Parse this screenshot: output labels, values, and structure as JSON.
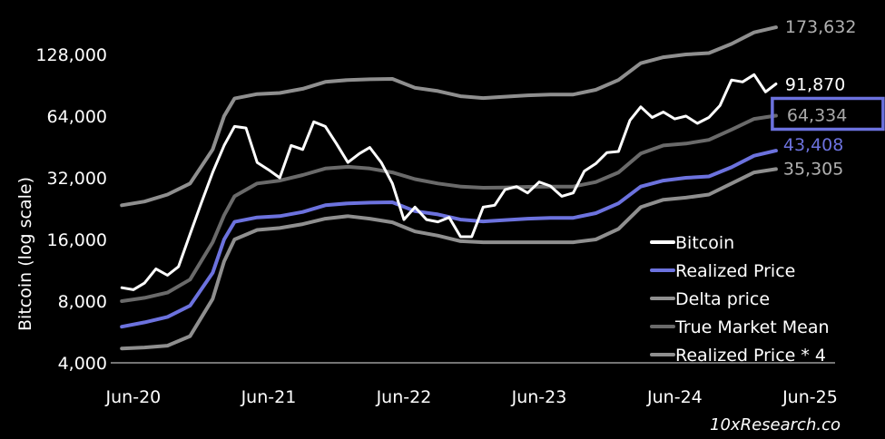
{
  "chart_data": {
    "type": "line",
    "ylabel": "Bitcoin (log scale)",
    "y_scale": "log2",
    "ylim": [
      4000,
      180000
    ],
    "xlim": [
      "2020-04-01",
      "2025-09-01"
    ],
    "yticks": [
      {
        "value": 4000,
        "label": "4,000"
      },
      {
        "value": 8000,
        "label": "8,000"
      },
      {
        "value": 16000,
        "label": "16,000"
      },
      {
        "value": 32000,
        "label": "32,000"
      },
      {
        "value": 64000,
        "label": "64,000"
      },
      {
        "value": 128000,
        "label": "128,000"
      }
    ],
    "xticks": [
      {
        "value": "2020-06-01",
        "label": "Jun-20"
      },
      {
        "value": "2021-06-01",
        "label": "Jun-21"
      },
      {
        "value": "2022-06-01",
        "label": "Jun-22"
      },
      {
        "value": "2023-06-01",
        "label": "Jun-23"
      },
      {
        "value": "2024-06-01",
        "label": "Jun-24"
      },
      {
        "value": "2025-06-01",
        "label": "Jun-25"
      }
    ],
    "grid": false,
    "legend_position": "bottom-right",
    "series": [
      {
        "name": "Bitcoin",
        "color": "#ffffff",
        "end_label": "91,870",
        "end_label_color": "#ffffff",
        "points": [
          [
            "2020-05-01",
            9300
          ],
          [
            "2020-06-01",
            9100
          ],
          [
            "2020-07-01",
            9800
          ],
          [
            "2020-08-01",
            11500
          ],
          [
            "2020-09-01",
            10700
          ],
          [
            "2020-10-01",
            11800
          ],
          [
            "2020-11-01",
            17000
          ],
          [
            "2020-12-01",
            24000
          ],
          [
            "2021-01-01",
            34000
          ],
          [
            "2021-02-01",
            46000
          ],
          [
            "2021-03-01",
            57000
          ],
          [
            "2021-04-01",
            56000
          ],
          [
            "2021-05-01",
            38000
          ],
          [
            "2021-06-01",
            35000
          ],
          [
            "2021-07-01",
            32000
          ],
          [
            "2021-08-01",
            46000
          ],
          [
            "2021-09-01",
            44000
          ],
          [
            "2021-10-01",
            60000
          ],
          [
            "2021-11-01",
            57000
          ],
          [
            "2021-12-01",
            47000
          ],
          [
            "2022-01-01",
            38000
          ],
          [
            "2022-02-01",
            42000
          ],
          [
            "2022-03-01",
            45000
          ],
          [
            "2022-04-01",
            38000
          ],
          [
            "2022-05-01",
            30000
          ],
          [
            "2022-06-01",
            20000
          ],
          [
            "2022-07-01",
            23000
          ],
          [
            "2022-08-01",
            20000
          ],
          [
            "2022-09-01",
            19500
          ],
          [
            "2022-10-01",
            20500
          ],
          [
            "2022-11-01",
            16500
          ],
          [
            "2022-12-01",
            16500
          ],
          [
            "2023-01-01",
            23000
          ],
          [
            "2023-02-01",
            23500
          ],
          [
            "2023-03-01",
            28000
          ],
          [
            "2023-04-01",
            29000
          ],
          [
            "2023-05-01",
            27000
          ],
          [
            "2023-06-01",
            30500
          ],
          [
            "2023-07-01",
            29200
          ],
          [
            "2023-08-01",
            26000
          ],
          [
            "2023-09-01",
            27000
          ],
          [
            "2023-10-01",
            34500
          ],
          [
            "2023-11-01",
            37500
          ],
          [
            "2023-12-01",
            42500
          ],
          [
            "2024-01-01",
            43000
          ],
          [
            "2024-02-01",
            61000
          ],
          [
            "2024-03-01",
            71000
          ],
          [
            "2024-04-01",
            63000
          ],
          [
            "2024-05-01",
            67000
          ],
          [
            "2024-06-01",
            62000
          ],
          [
            "2024-07-01",
            64000
          ],
          [
            "2024-08-01",
            59000
          ],
          [
            "2024-09-01",
            63000
          ],
          [
            "2024-10-01",
            72000
          ],
          [
            "2024-11-01",
            96000
          ],
          [
            "2024-12-01",
            94000
          ],
          [
            "2025-01-01",
            102000
          ],
          [
            "2025-02-01",
            84000
          ],
          [
            "2025-03-01",
            91870
          ]
        ]
      },
      {
        "name": "Realized Price",
        "color": "#6c72de",
        "end_label": "43,408",
        "end_label_color": "#6c72de",
        "points": [
          [
            "2020-05-01",
            6000
          ],
          [
            "2020-07-01",
            6300
          ],
          [
            "2020-09-01",
            6700
          ],
          [
            "2020-11-01",
            7600
          ],
          [
            "2021-01-01",
            11000
          ],
          [
            "2021-02-01",
            16000
          ],
          [
            "2021-03-01",
            19500
          ],
          [
            "2021-05-01",
            20500
          ],
          [
            "2021-07-01",
            20800
          ],
          [
            "2021-09-01",
            21800
          ],
          [
            "2021-11-01",
            23500
          ],
          [
            "2022-01-01",
            24000
          ],
          [
            "2022-03-01",
            24200
          ],
          [
            "2022-05-01",
            24300
          ],
          [
            "2022-07-01",
            22000
          ],
          [
            "2022-09-01",
            21200
          ],
          [
            "2022-11-01",
            20000
          ],
          [
            "2023-01-01",
            19600
          ],
          [
            "2023-03-01",
            19900
          ],
          [
            "2023-05-01",
            20200
          ],
          [
            "2023-07-01",
            20400
          ],
          [
            "2023-09-01",
            20400
          ],
          [
            "2023-11-01",
            21500
          ],
          [
            "2024-01-01",
            24000
          ],
          [
            "2024-03-01",
            29000
          ],
          [
            "2024-05-01",
            31000
          ],
          [
            "2024-07-01",
            32000
          ],
          [
            "2024-09-01",
            32500
          ],
          [
            "2024-11-01",
            36000
          ],
          [
            "2025-01-01",
            41000
          ],
          [
            "2025-03-01",
            43408
          ]
        ]
      },
      {
        "name": "Delta price",
        "color": "#8f8f8f",
        "end_label": "35,305",
        "end_label_color": "#b0b0b0",
        "points": [
          [
            "2020-05-01",
            4700
          ],
          [
            "2020-07-01",
            4750
          ],
          [
            "2020-09-01",
            4850
          ],
          [
            "2020-11-01",
            5400
          ],
          [
            "2021-01-01",
            8200
          ],
          [
            "2021-02-01",
            12500
          ],
          [
            "2021-03-01",
            16000
          ],
          [
            "2021-05-01",
            17800
          ],
          [
            "2021-07-01",
            18200
          ],
          [
            "2021-09-01",
            19000
          ],
          [
            "2021-11-01",
            20200
          ],
          [
            "2022-01-01",
            20800
          ],
          [
            "2022-03-01",
            20200
          ],
          [
            "2022-05-01",
            19400
          ],
          [
            "2022-07-01",
            17500
          ],
          [
            "2022-09-01",
            16700
          ],
          [
            "2022-11-01",
            15700
          ],
          [
            "2023-01-01",
            15500
          ],
          [
            "2023-03-01",
            15500
          ],
          [
            "2023-05-01",
            15500
          ],
          [
            "2023-07-01",
            15500
          ],
          [
            "2023-09-01",
            15500
          ],
          [
            "2023-11-01",
            16000
          ],
          [
            "2024-01-01",
            18000
          ],
          [
            "2024-03-01",
            23000
          ],
          [
            "2024-05-01",
            25000
          ],
          [
            "2024-07-01",
            25600
          ],
          [
            "2024-09-01",
            26500
          ],
          [
            "2024-11-01",
            30000
          ],
          [
            "2025-01-01",
            34000
          ],
          [
            "2025-03-01",
            35305
          ]
        ]
      },
      {
        "name": "True Market Mean",
        "color": "#6a6a6a",
        "end_label": "64,334",
        "end_label_color": "#a8a8a8",
        "points": [
          [
            "2020-05-01",
            8000
          ],
          [
            "2020-07-01",
            8300
          ],
          [
            "2020-09-01",
            8800
          ],
          [
            "2020-11-01",
            10200
          ],
          [
            "2021-01-01",
            15500
          ],
          [
            "2021-02-01",
            21000
          ],
          [
            "2021-03-01",
            26000
          ],
          [
            "2021-05-01",
            30000
          ],
          [
            "2021-07-01",
            31000
          ],
          [
            "2021-09-01",
            33000
          ],
          [
            "2021-11-01",
            35500
          ],
          [
            "2022-01-01",
            36200
          ],
          [
            "2022-03-01",
            35500
          ],
          [
            "2022-05-01",
            34000
          ],
          [
            "2022-07-01",
            31500
          ],
          [
            "2022-09-01",
            30000
          ],
          [
            "2022-11-01",
            29000
          ],
          [
            "2023-01-01",
            28600
          ],
          [
            "2023-03-01",
            28700
          ],
          [
            "2023-05-01",
            28900
          ],
          [
            "2023-07-01",
            29000
          ],
          [
            "2023-09-01",
            29000
          ],
          [
            "2023-11-01",
            30500
          ],
          [
            "2024-01-01",
            34000
          ],
          [
            "2024-03-01",
            42000
          ],
          [
            "2024-05-01",
            46000
          ],
          [
            "2024-07-01",
            47000
          ],
          [
            "2024-09-01",
            49000
          ],
          [
            "2024-11-01",
            55000
          ],
          [
            "2025-01-01",
            62000
          ],
          [
            "2025-03-01",
            64334
          ]
        ]
      },
      {
        "name": "Realized Price * 4",
        "color": "#8f8f8f",
        "end_label": "173,632",
        "end_label_color": "#b0b0b0",
        "points": [
          [
            "2020-05-01",
            23500
          ],
          [
            "2020-07-01",
            24500
          ],
          [
            "2020-09-01",
            26500
          ],
          [
            "2020-11-01",
            30000
          ],
          [
            "2021-01-01",
            44000
          ],
          [
            "2021-02-01",
            64000
          ],
          [
            "2021-03-01",
            78000
          ],
          [
            "2021-05-01",
            82000
          ],
          [
            "2021-07-01",
            83000
          ],
          [
            "2021-09-01",
            87000
          ],
          [
            "2021-11-01",
            94000
          ],
          [
            "2022-01-01",
            96000
          ],
          [
            "2022-03-01",
            96800
          ],
          [
            "2022-05-01",
            97200
          ],
          [
            "2022-07-01",
            88000
          ],
          [
            "2022-09-01",
            84800
          ],
          [
            "2022-11-01",
            80000
          ],
          [
            "2023-01-01",
            78400
          ],
          [
            "2023-03-01",
            79600
          ],
          [
            "2023-05-01",
            80800
          ],
          [
            "2023-07-01",
            81600
          ],
          [
            "2023-09-01",
            81600
          ],
          [
            "2023-11-01",
            86000
          ],
          [
            "2024-01-01",
            96000
          ],
          [
            "2024-03-01",
            116000
          ],
          [
            "2024-05-01",
            124000
          ],
          [
            "2024-07-01",
            128000
          ],
          [
            "2024-09-01",
            130000
          ],
          [
            "2024-11-01",
            144000
          ],
          [
            "2025-01-01",
            164000
          ],
          [
            "2025-03-01",
            173632
          ]
        ]
      }
    ],
    "highlight_box": {
      "target": "64,334",
      "color": "#6c72de"
    },
    "watermark": "10xResearch.co"
  }
}
